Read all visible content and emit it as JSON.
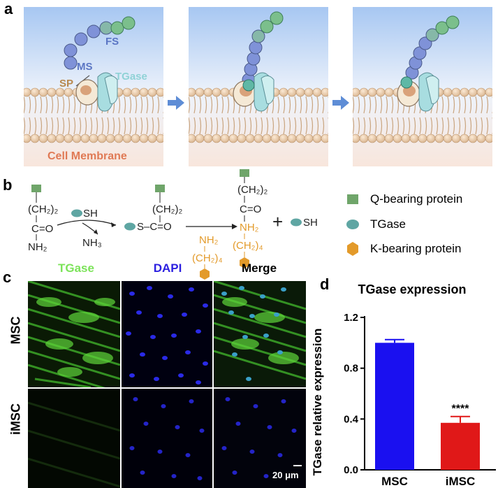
{
  "panels": {
    "a": "a",
    "b": "b",
    "c": "c",
    "d": "d"
  },
  "panel_a": {
    "labels": {
      "fs": "FS",
      "ms": "MS",
      "sp": "SP",
      "tgase": "TGase",
      "membrane": "Cell Membrane"
    }
  },
  "panel_b": {
    "ch2_2": "(CH₂)₂",
    "c_eq_o": "C=O",
    "nh2": "NH₂",
    "sh": "SH",
    "nh3": "NH₃",
    "s_c_eq_o": "S–C=O",
    "ch2_4": "(CH₂)₄",
    "plus": "+",
    "legend": [
      {
        "label": "Q-bearing protein",
        "color": "#6FA56A",
        "shape": "square"
      },
      {
        "label": "TGase",
        "color": "#5FA6A3",
        "shape": "ellipse"
      },
      {
        "label": "K-bearing protein",
        "color": "#E39A2A",
        "shape": "hexagon"
      }
    ]
  },
  "panel_c": {
    "columns": [
      {
        "label": "TGase",
        "color": "#7CE35A"
      },
      {
        "label": "DAPI",
        "color": "#2B1FE0"
      },
      {
        "label": "Merge",
        "color": "#000000"
      }
    ],
    "rows": [
      "MSC",
      "iMSC"
    ],
    "scale_bar": "20 μm"
  },
  "chart_data": {
    "type": "bar",
    "title": "TGase expression",
    "xlabel": "",
    "ylabel": "TGase relative expression",
    "categories": [
      "MSC",
      "iMSC"
    ],
    "values": [
      1.0,
      0.37
    ],
    "errors": [
      0.025,
      0.05
    ],
    "colors": [
      "#1A10F0",
      "#E01818"
    ],
    "ylim": [
      0,
      1.2
    ],
    "yticks": [
      "0.0",
      "0.4",
      "0.8",
      "1.2"
    ],
    "annotations": [
      {
        "category": "iMSC",
        "text": "****"
      }
    ]
  }
}
